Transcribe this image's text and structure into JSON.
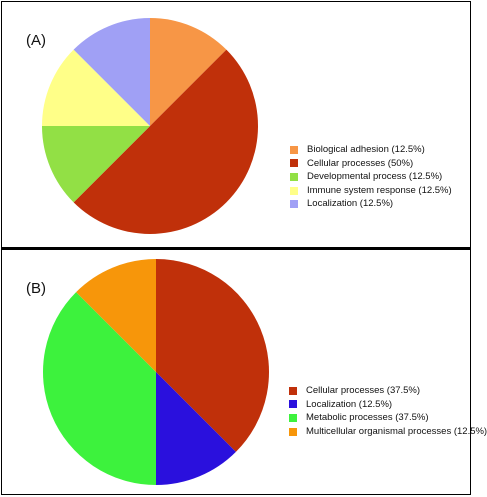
{
  "chart_data": [
    {
      "type": "pie",
      "panel_label": "(A)",
      "title": "",
      "categories": [
        "Biological adhesion",
        "Cellular processes",
        "Developmental process",
        "Immune system response",
        "Localization"
      ],
      "values": [
        12.5,
        50,
        12.5,
        12.5,
        12.5
      ],
      "legend_labels": [
        "Biological adhesion (12.5%)",
        "Cellular processes (50%)",
        "Developmental process (12.5%)",
        "Immune system response (12.5%)",
        "Localization (12.5%)"
      ],
      "colors": [
        "#f79646",
        "#c0300a",
        "#92e045",
        "#ffff88",
        "#a0a0f5"
      ],
      "legend_position": "right"
    },
    {
      "type": "pie",
      "panel_label": "(B)",
      "title": "",
      "categories": [
        "Cellular processes",
        "Localization",
        "Metabolic processes",
        "Multicellular organismal processes"
      ],
      "values": [
        37.5,
        12.5,
        37.5,
        12.5
      ],
      "legend_labels": [
        "Cellular processes (37.5%)",
        "Localization (12.5%)",
        "Metabolic processes (37.5%)",
        "Multicellular organismal processes (12.5%)"
      ],
      "colors": [
        "#c0300a",
        "#2a10dd",
        "#3df23d",
        "#f7960a"
      ],
      "legend_position": "right"
    }
  ]
}
